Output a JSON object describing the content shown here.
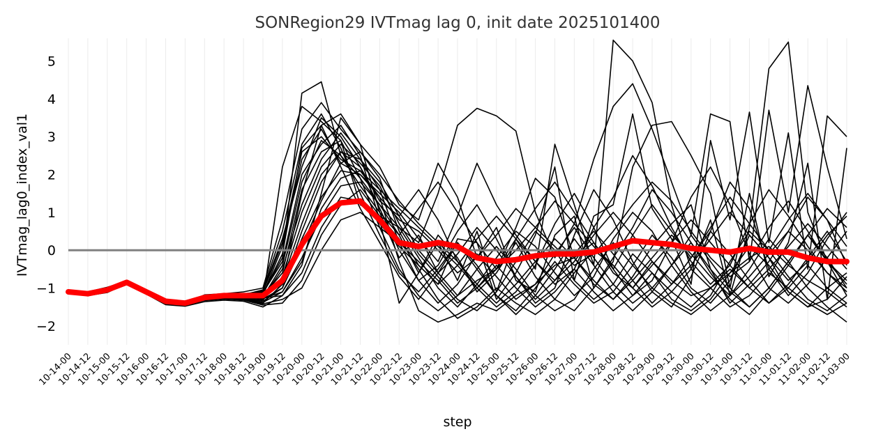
{
  "chart_data": {
    "type": "line",
    "title": "SONRegion29 IVTmag lag 0, init date 2025101400",
    "xlabel": "step",
    "ylabel": "IVTmag_lag0_index_val1",
    "ylim": [
      -2.5,
      5.6
    ],
    "yticks": [
      -2,
      -1,
      0,
      1,
      2,
      3,
      4,
      5
    ],
    "grid": "vertical",
    "reference_line": 0,
    "colors": {
      "members": "#000000",
      "mean": "#ff0000",
      "zero_line": "#808080"
    },
    "categories": [
      "10-14-00",
      "10-14-12",
      "10-15-00",
      "10-15-12",
      "10-16-00",
      "10-16-12",
      "10-17-00",
      "10-17-12",
      "10-18-00",
      "10-18-12",
      "10-19-00",
      "10-19-12",
      "10-20-00",
      "10-20-12",
      "10-21-00",
      "10-21-12",
      "10-22-00",
      "10-22-12",
      "10-23-00",
      "10-23-12",
      "10-24-00",
      "10-24-12",
      "10-25-00",
      "10-25-12",
      "10-26-00",
      "10-26-12",
      "10-27-00",
      "10-27-12",
      "10-28-00",
      "10-28-12",
      "10-29-00",
      "10-29-12",
      "10-30-00",
      "10-30-12",
      "10-31-00",
      "10-31-12",
      "11-01-00",
      "11-01-12",
      "11-02-00",
      "11-02-12",
      "11-03-00"
    ],
    "ensemble_mean": [
      -1.1,
      -1.15,
      -1.05,
      -0.85,
      -1.1,
      -1.35,
      -1.4,
      -1.25,
      -1.2,
      -1.2,
      -1.2,
      -0.8,
      0.15,
      0.9,
      1.25,
      1.3,
      0.8,
      0.2,
      0.1,
      0.2,
      0.1,
      -0.2,
      -0.3,
      -0.25,
      -0.15,
      -0.1,
      -0.1,
      -0.05,
      0.1,
      0.25,
      0.2,
      0.15,
      0.05,
      0.0,
      -0.05,
      0.05,
      -0.05,
      -0.05,
      -0.2,
      -0.3,
      -0.3
    ],
    "series": [
      {
        "values": [
          -1.08,
          -1.14,
          -1.05,
          -0.86,
          -1.12,
          -1.38,
          -1.42,
          -1.3,
          -1.22,
          -1.25,
          -1.15,
          -0.2,
          4.15,
          4.45,
          2.5,
          1.9,
          1.2,
          0.4,
          -0.6,
          0.2,
          -0.8,
          0.5,
          -1.1,
          0.3,
          -0.5,
          2.8,
          1.2,
          -0.4,
          5.55,
          5.0,
          3.9,
          1.2,
          -0.5,
          0.8,
          -1.2,
          0.6,
          4.8,
          5.5,
          1.0,
          -0.3,
          -1.2
        ]
      },
      {
        "values": [
          -1.12,
          -1.16,
          -1.1,
          -0.83,
          -1.1,
          -1.36,
          -1.45,
          -1.28,
          -1.26,
          -1.2,
          -1.3,
          2.2,
          3.8,
          3.4,
          2.9,
          1.2,
          0.9,
          0.6,
          0.2,
          1.5,
          3.3,
          3.75,
          3.55,
          3.15,
          1.0,
          -0.2,
          0.7,
          2.4,
          3.8,
          4.4,
          3.2,
          1.8,
          0.4,
          3.6,
          3.4,
          -0.3,
          3.7,
          1.0,
          4.35,
          2.2,
          0.3
        ]
      },
      {
        "values": [
          -1.1,
          -1.12,
          -1.02,
          -0.8,
          -1.08,
          -1.34,
          -1.4,
          -1.18,
          -1.15,
          -1.1,
          -1.0,
          0.8,
          3.2,
          3.9,
          3.2,
          2.6,
          1.9,
          0.5,
          -0.4,
          -0.9,
          0.3,
          0.2,
          -1.3,
          -0.6,
          0.4,
          2.2,
          -0.8,
          0.9,
          1.2,
          3.6,
          1.1,
          0.3,
          -0.9,
          2.9,
          0.8,
          3.65,
          0.2,
          3.1,
          -0.5,
          3.55,
          3.0
        ]
      },
      {
        "values": [
          -1.15,
          -1.18,
          -1.08,
          -0.9,
          -1.14,
          -1.4,
          -1.38,
          -1.32,
          -1.28,
          -1.3,
          -1.4,
          -0.9,
          1.5,
          3.3,
          3.6,
          2.8,
          2.2,
          1.2,
          0.8,
          2.3,
          1.4,
          -0.2,
          0.6,
          -0.8,
          -1.1,
          0.4,
          0.9,
          -1.0,
          -0.3,
          2.2,
          3.3,
          3.4,
          2.5,
          1.5,
          -1.0,
          1.5,
          -0.7,
          0.2,
          2.3,
          -1.3,
          2.7
        ]
      },
      {
        "values": [
          -1.05,
          -1.1,
          -0.98,
          -0.82,
          -1.06,
          -1.32,
          -1.36,
          -1.22,
          -1.18,
          -1.15,
          -1.1,
          0.2,
          2.6,
          3.0,
          2.4,
          2.1,
          1.4,
          -0.3,
          -1.6,
          -1.9,
          -1.7,
          -1.4,
          -1.6,
          -1.2,
          -0.9,
          -0.4,
          -0.2,
          0.2,
          -0.6,
          -1.0,
          -0.3,
          -0.8,
          -1.2,
          -1.0,
          -0.6,
          -0.2,
          0.1,
          -0.4,
          -0.8,
          -1.1,
          -1.5
        ]
      },
      {
        "values": [
          -1.1,
          -1.2,
          -1.12,
          -0.88,
          -1.16,
          -1.44,
          -1.48,
          -1.36,
          -1.32,
          -1.35,
          -1.5,
          -1.2,
          -0.4,
          1.5,
          3.5,
          2.8,
          1.0,
          -0.2,
          0.4,
          -0.6,
          -1.2,
          -0.8,
          -0.5,
          0.6,
          1.9,
          1.4,
          -0.2,
          -0.9,
          -1.3,
          -0.7,
          0.1,
          0.7,
          1.2,
          -0.5,
          -1.4,
          -0.9,
          -0.3,
          0.5,
          1.4,
          0.8,
          -0.4
        ]
      },
      {
        "values": [
          -1.07,
          -1.13,
          -1.04,
          -0.84,
          -1.11,
          -1.37,
          -1.41,
          -1.27,
          -1.23,
          -1.22,
          -1.25,
          -0.5,
          1.2,
          2.4,
          3.1,
          2.4,
          1.6,
          0.2,
          -0.8,
          -0.4,
          0.5,
          1.2,
          0.3,
          -0.7,
          -1.4,
          -1.0,
          0.4,
          1.6,
          0.8,
          -0.3,
          -1.1,
          -1.5,
          -0.7,
          0.5,
          1.8,
          1.1,
          -0.5,
          -1.2,
          -0.6,
          0.3,
          1.0
        ]
      },
      {
        "values": [
          -1.13,
          -1.17,
          -1.09,
          -0.87,
          -1.13,
          -1.39,
          -1.43,
          -1.31,
          -1.27,
          -1.28,
          -1.35,
          -1.0,
          0.5,
          1.8,
          2.6,
          2.2,
          1.3,
          0.9,
          1.6,
          0.8,
          -0.3,
          -1.0,
          -1.5,
          -1.1,
          -0.4,
          0.7,
          1.5,
          0.6,
          -0.5,
          -1.2,
          -0.8,
          0.2,
          1.4,
          2.2,
          1.2,
          -0.1,
          -1.0,
          -1.4,
          -0.9,
          -0.2,
          0.5
        ]
      },
      {
        "values": [
          -1.09,
          -1.15,
          -1.06,
          -0.85,
          -1.09,
          -1.35,
          -1.39,
          -1.26,
          -1.21,
          -1.18,
          -1.05,
          0.5,
          2.8,
          3.6,
          2.7,
          1.5,
          0.4,
          -0.6,
          -1.1,
          -0.5,
          0.2,
          -0.4,
          -1.2,
          -1.6,
          -1.0,
          -0.3,
          -0.9,
          -1.4,
          -1.1,
          -0.4,
          0.4,
          -0.2,
          -1.0,
          -1.4,
          -0.8,
          0.4,
          -0.2,
          -1.1,
          -1.5,
          -1.0,
          -0.6
        ]
      },
      {
        "values": [
          -1.11,
          -1.16,
          -1.07,
          -0.86,
          -1.12,
          -1.38,
          -1.42,
          -1.29,
          -1.25,
          -1.26,
          -1.28,
          -1.1,
          -0.2,
          0.9,
          1.7,
          1.8,
          1.2,
          0.6,
          -0.2,
          -1.0,
          -1.5,
          -0.9,
          -0.2,
          0.5,
          0.1,
          -0.6,
          -1.2,
          -0.7,
          0.3,
          1.0,
          0.5,
          -0.4,
          -1.1,
          -1.6,
          -1.2,
          -0.5,
          0.3,
          -0.3,
          -1.0,
          -1.5,
          -1.9
        ]
      },
      {
        "values": [
          -1.06,
          -1.11,
          -1.01,
          -0.81,
          -1.07,
          -1.33,
          -1.37,
          -1.24,
          -1.19,
          -1.16,
          -1.12,
          -0.3,
          2.0,
          2.8,
          3.3,
          2.5,
          0.8,
          -1.4,
          -0.6,
          0.4,
          -0.2,
          -1.1,
          -0.6,
          0.2,
          -0.7,
          -1.3,
          -1.6,
          -1.0,
          -0.2,
          0.6,
          1.6,
          1.0,
          0.2,
          -0.6,
          -1.3,
          -1.7,
          -1.1,
          -0.4,
          0.4,
          1.1,
          0.6
        ]
      },
      {
        "values": [
          -1.14,
          -1.19,
          -1.11,
          -0.89,
          -1.15,
          -1.41,
          -1.46,
          -1.33,
          -1.29,
          -1.32,
          -1.45,
          -1.4,
          -0.8,
          0.4,
          1.2,
          1.6,
          0.9,
          0.3,
          -0.5,
          -1.3,
          -1.8,
          -1.5,
          -1.0,
          -1.4,
          -1.7,
          -1.3,
          -0.6,
          0.0,
          -0.4,
          -1.0,
          -1.5,
          -1.1,
          -0.5,
          -1.0,
          -1.5,
          -1.2,
          -0.6,
          -1.0,
          -1.4,
          -1.7,
          -1.4
        ]
      },
      {
        "values": [
          -1.08,
          -1.12,
          -1.03,
          -0.84,
          -1.1,
          -1.36,
          -1.4,
          -1.25,
          -1.2,
          -1.19,
          -1.18,
          0.1,
          2.4,
          3.2,
          2.3,
          2.0,
          1.5,
          1.0,
          0.3,
          -0.3,
          0.9,
          2.3,
          1.2,
          0.4,
          -0.3,
          -0.9,
          -0.5,
          0.6,
          1.4,
          2.5,
          1.7,
          0.6,
          -0.3,
          -0.9,
          -0.4,
          0.7,
          1.6,
          0.9,
          0.1,
          -0.6,
          -1.0
        ]
      },
      {
        "values": [
          -1.12,
          -1.15,
          -1.08,
          -0.87,
          -1.11,
          -1.39,
          -1.44,
          -1.3,
          -1.26,
          -1.27,
          -1.32,
          -0.7,
          1.0,
          2.2,
          2.8,
          2.3,
          1.7,
          0.7,
          -0.1,
          -0.7,
          -1.3,
          -1.6,
          -1.1,
          -0.3,
          0.5,
          0.0,
          -0.8,
          -1.3,
          -0.9,
          -0.1,
          -0.6,
          -1.3,
          -1.6,
          -1.2,
          -0.3,
          0.5,
          0.0,
          -0.7,
          -1.3,
          -1.6,
          -1.2
        ]
      },
      {
        "values": [
          -1.1,
          -1.14,
          -1.05,
          -0.85,
          -1.13,
          -1.37,
          -1.41,
          -1.28,
          -1.24,
          -1.23,
          -1.22,
          -0.9,
          0.3,
          1.4,
          2.1,
          2.0,
          1.4,
          0.8,
          0.5,
          0.0,
          -0.6,
          -0.2,
          0.4,
          1.1,
          0.6,
          0.1,
          -0.4,
          -0.1,
          0.5,
          1.2,
          1.8,
          1.3,
          0.5,
          -0.2,
          -0.7,
          -0.3,
          0.6,
          1.3,
          0.5,
          -0.3,
          -0.8
        ]
      },
      {
        "values": [
          -1.09,
          -1.13,
          -1.04,
          -0.83,
          -1.09,
          -1.35,
          -1.39,
          -1.27,
          -1.22,
          -1.21,
          -1.2,
          -0.6,
          1.6,
          2.6,
          2.9,
          1.9,
          0.6,
          -0.5,
          -1.2,
          -1.6,
          -1.2,
          -0.5,
          0.1,
          -0.5,
          -1.2,
          -1.6,
          -1.3,
          -0.5,
          0.2,
          -0.4,
          -1.0,
          -1.4,
          -1.7,
          -1.3,
          -0.6,
          0.1,
          -0.4,
          -1.1,
          -1.5,
          -1.3,
          -0.7
        ]
      },
      {
        "values": [
          -1.11,
          -1.17,
          -1.08,
          -0.86,
          -1.12,
          -1.38,
          -1.43,
          -1.29,
          -1.25,
          -1.24,
          -1.26,
          -1.2,
          -0.6,
          0.6,
          1.4,
          1.3,
          0.7,
          0.1,
          -0.4,
          -0.9,
          -0.4,
          0.3,
          0.9,
          0.3,
          -0.3,
          -0.8,
          -0.3,
          0.4,
          1.0,
          0.4,
          -0.3,
          -0.9,
          -0.4,
          0.3,
          1.0,
          0.4,
          -0.2,
          -0.8,
          -0.3,
          0.4,
          0.9
        ]
      },
      {
        "values": [
          -1.07,
          -1.12,
          -1.02,
          -0.82,
          -1.08,
          -1.34,
          -1.38,
          -1.23,
          -1.2,
          -1.17,
          -1.08,
          0.3,
          2.2,
          3.5,
          3.0,
          2.2,
          1.1,
          0.0,
          -0.8,
          -1.4,
          -0.9,
          -0.1,
          -0.7,
          -1.3,
          -0.9,
          -0.1,
          0.6,
          -0.2,
          -0.9,
          -1.4,
          -1.0,
          -0.4,
          0.2,
          -0.5,
          -1.1,
          -1.5,
          -1.0,
          -0.3,
          0.4,
          -0.3,
          -0.9
        ]
      },
      {
        "values": [
          -1.13,
          -1.18,
          -1.1,
          -0.88,
          -1.14,
          -1.4,
          -1.45,
          -1.32,
          -1.28,
          -1.31,
          -1.42,
          -1.3,
          -1.0,
          0.0,
          0.8,
          1.0,
          0.6,
          0.2,
          -0.3,
          -0.8,
          -1.4,
          -1.0,
          -0.4,
          -1.0,
          -1.5,
          -1.1,
          -0.5,
          -1.1,
          -1.6,
          -1.2,
          -0.6,
          -1.1,
          -1.5,
          -1.0,
          -0.5,
          -1.0,
          -1.4,
          -1.0,
          -0.4,
          -1.0,
          -1.4
        ]
      },
      {
        "values": [
          -1.1,
          -1.15,
          -1.06,
          -0.85,
          -1.11,
          -1.37,
          -1.42,
          -1.28,
          -1.23,
          -1.22,
          -1.24,
          -0.4,
          1.8,
          2.9,
          2.5,
          1.7,
          1.0,
          0.4,
          1.1,
          1.8,
          1.0,
          0.2,
          -0.5,
          0.3,
          1.1,
          1.8,
          1.0,
          0.2,
          -0.5,
          0.4,
          1.2,
          0.5,
          -0.2,
          0.6,
          1.4,
          0.7,
          0.0,
          0.8,
          1.5,
          0.8,
          0.1
        ]
      },
      {
        "values": [
          -1.08,
          -1.14,
          -1.04,
          -0.84,
          -1.1,
          -1.36,
          -1.4,
          -1.26,
          -1.21,
          -1.2,
          -1.16,
          -0.1,
          2.7,
          3.3,
          2.2,
          1.1,
          0.2,
          -0.7,
          -1.3,
          -0.6,
          0.2,
          -0.5,
          -1.2,
          -1.7,
          -1.2,
          -0.5,
          0.3,
          -0.4,
          -1.1,
          -1.6,
          -1.1,
          -0.4,
          0.4,
          -0.3,
          -1.0,
          -1.5,
          -1.0,
          -0.3,
          0.4,
          -0.2,
          -1.0
        ]
      },
      {
        "values": [
          -1.12,
          -1.16,
          -1.09,
          -0.87,
          -1.13,
          -1.39,
          -1.44,
          -1.31,
          -1.27,
          -1.29,
          -1.38,
          -1.1,
          -0.3,
          1.1,
          1.9,
          2.1,
          1.6,
          1.1,
          0.6,
          0.1,
          -0.4,
          -1.0,
          -0.5,
          0.0,
          0.6,
          1.3,
          0.7,
          0.1,
          -0.4,
          -1.0,
          -0.4,
          0.2,
          0.8,
          0.2,
          -0.4,
          -1.0,
          -0.5,
          0.1,
          0.7,
          0.1,
          -0.5
        ]
      },
      {
        "values": [
          -1.09,
          -1.13,
          -1.05,
          -0.84,
          -1.1,
          -1.35,
          -1.4,
          -1.27,
          -1.22,
          -1.21,
          -1.21,
          -0.8,
          0.7,
          2.0,
          2.6,
          2.4,
          1.8,
          0.9,
          0.0,
          -0.6,
          -0.1,
          0.6,
          0.0,
          -0.7,
          -1.3,
          -0.8,
          -0.1,
          0.5,
          -0.1,
          -0.8,
          -1.4,
          -0.9,
          -0.2,
          0.5,
          -0.1,
          -0.8,
          -1.4,
          -0.9,
          -0.2,
          0.5,
          -0.3
        ]
      },
      {
        "values": [
          -1.11,
          -1.16,
          -1.07,
          -0.86,
          -1.12,
          -1.38,
          -1.43,
          -1.3,
          -1.25,
          -1.25,
          -1.29,
          -1.0,
          0.1,
          1.3,
          2.3,
          2.6,
          2.0,
          1.3,
          0.7,
          0.2,
          -0.3,
          -0.9,
          -1.4,
          -0.9,
          -0.3,
          0.3,
          -0.2,
          -0.8,
          -1.3,
          -0.8,
          -0.2,
          0.4,
          -0.1,
          -0.7,
          -1.2,
          -0.7,
          -0.1,
          0.5,
          0.0,
          -0.6,
          -1.1
        ]
      }
    ]
  }
}
